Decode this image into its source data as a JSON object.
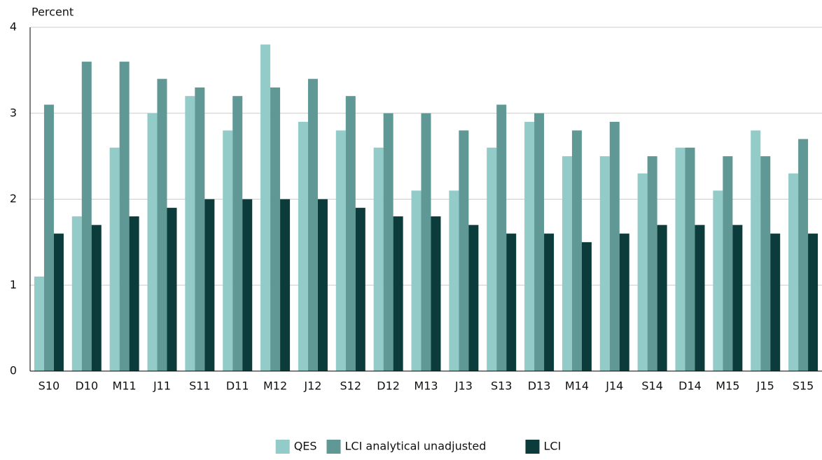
{
  "chart_data": {
    "type": "bar",
    "y_label": "Percent",
    "categories": [
      "S10",
      "D10",
      "M11",
      "J11",
      "S11",
      "D11",
      "M12",
      "J12",
      "S12",
      "D12",
      "M13",
      "J13",
      "S13",
      "D13",
      "M14",
      "J14",
      "S14",
      "D14",
      "M15",
      "J15",
      "S15"
    ],
    "series": [
      {
        "name": "QES",
        "color": "#93cbc9",
        "values": [
          1.1,
          1.8,
          2.6,
          3.0,
          3.2,
          2.8,
          3.8,
          2.9,
          2.8,
          2.6,
          2.1,
          2.1,
          2.6,
          2.9,
          2.5,
          2.5,
          2.3,
          2.6,
          2.1,
          2.8,
          2.3
        ]
      },
      {
        "name": "LCI analytical unadjusted",
        "color": "#5f9894",
        "values": [
          3.1,
          3.6,
          3.6,
          3.4,
          3.3,
          3.2,
          3.3,
          3.4,
          3.2,
          3.0,
          3.0,
          2.8,
          3.1,
          3.0,
          2.8,
          2.9,
          2.5,
          2.6,
          2.5,
          2.5,
          2.7
        ]
      },
      {
        "name": "LCI",
        "color": "#0b3b3a",
        "values": [
          1.6,
          1.7,
          1.8,
          1.9,
          2.0,
          2.0,
          2.0,
          2.0,
          1.9,
          1.8,
          1.8,
          1.7,
          1.6,
          1.6,
          1.5,
          1.6,
          1.7,
          1.7,
          1.7,
          1.6,
          1.6
        ]
      }
    ],
    "ylim": [
      0,
      4
    ],
    "yticks": [
      0,
      1,
      2,
      3,
      4
    ],
    "grid": true,
    "legend": "bottom"
  }
}
